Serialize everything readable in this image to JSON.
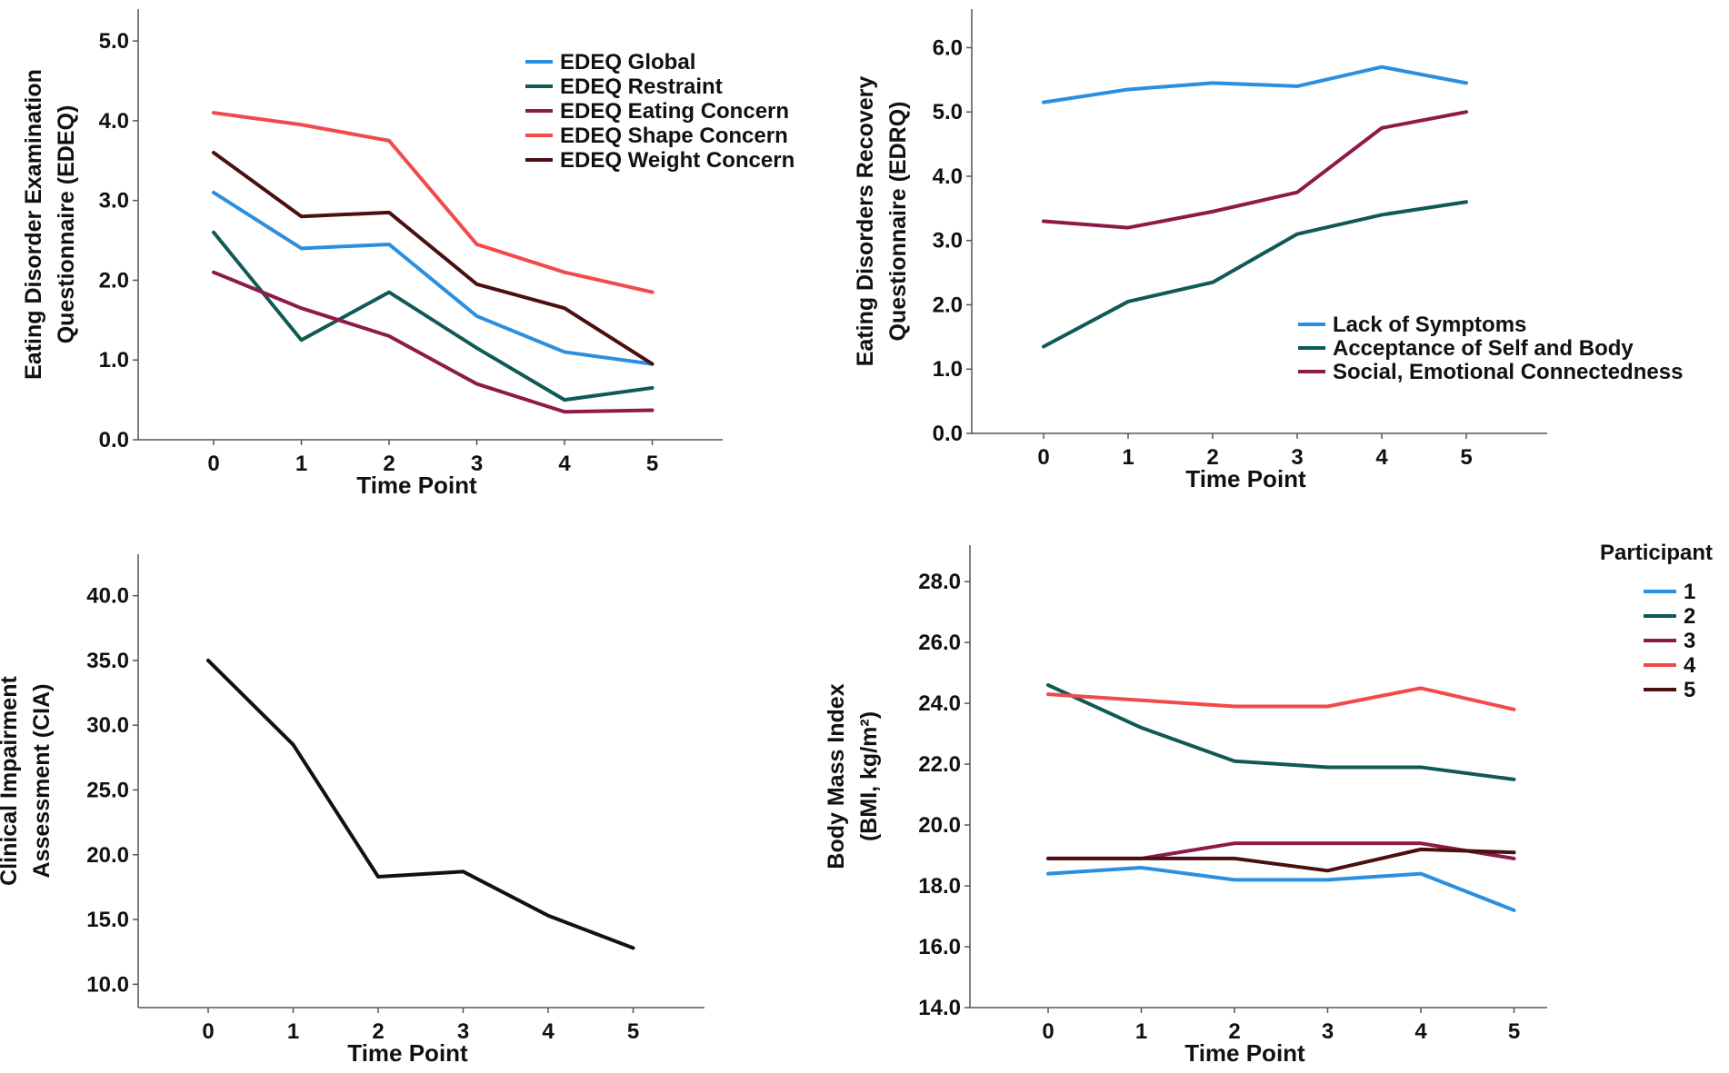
{
  "colors": {
    "blue": "#2b8fe0",
    "teal": "#0f5a55",
    "maroon": "#8c1a4a",
    "red": "#f24a4a",
    "darkbrown": "#4a0f0f",
    "black": "#111111",
    "axis": "#555555"
  },
  "chart_data": [
    {
      "id": "edeq",
      "type": "line",
      "ylabel_lines": [
        "Eating Disorder Examination",
        "Questionnaire (EDEQ)"
      ],
      "xlabel": "Time Point",
      "categories": [
        "0",
        "1",
        "2",
        "3",
        "4",
        "5"
      ],
      "ylim": [
        0,
        5.4
      ],
      "yticks": [
        0,
        1,
        2,
        3,
        4,
        5
      ],
      "ytick_labels": [
        "0.0",
        "1.0",
        "2.0",
        "3.0",
        "4.0",
        "5.0"
      ],
      "legend_position": "top-right",
      "legend_title": "",
      "series": [
        {
          "name": "EDEQ Global",
          "color": "#2b8fe0",
          "values": [
            3.1,
            2.4,
            2.45,
            1.55,
            1.1,
            0.95
          ]
        },
        {
          "name": "EDEQ Restraint",
          "color": "#0f5a55",
          "values": [
            2.6,
            1.25,
            1.85,
            1.15,
            0.5,
            0.65
          ]
        },
        {
          "name": "EDEQ Eating Concern",
          "color": "#8c1a4a",
          "values": [
            2.1,
            1.65,
            1.3,
            0.7,
            0.35,
            0.37
          ]
        },
        {
          "name": "EDEQ Shape Concern",
          "color": "#f24a4a",
          "values": [
            4.1,
            3.95,
            3.75,
            2.45,
            2.1,
            1.85
          ]
        },
        {
          "name": "EDEQ Weight Concern",
          "color": "#4a0f0f",
          "values": [
            3.6,
            2.8,
            2.85,
            1.95,
            1.65,
            0.95
          ]
        }
      ]
    },
    {
      "id": "edrq",
      "type": "line",
      "ylabel_lines": [
        "Eating Disorders Recovery",
        "Questionnaire (EDRQ)"
      ],
      "xlabel": "Time Point",
      "categories": [
        "0",
        "1",
        "2",
        "3",
        "4",
        "5"
      ],
      "ylim": [
        0,
        6.6
      ],
      "yticks": [
        0,
        1,
        2,
        3,
        4,
        5,
        6
      ],
      "ytick_labels": [
        "0.0",
        "1.0",
        "2.0",
        "3.0",
        "4.0",
        "5.0",
        "6.0"
      ],
      "legend_position": "lower-right",
      "legend_title": "",
      "series": [
        {
          "name": "Lack of Symptoms",
          "color": "#2b8fe0",
          "values": [
            5.15,
            5.35,
            5.45,
            5.4,
            5.7,
            5.45
          ]
        },
        {
          "name": "Acceptance of Self and Body",
          "color": "#0f5a55",
          "values": [
            1.35,
            2.05,
            2.35,
            3.1,
            3.4,
            3.6
          ]
        },
        {
          "name": "Social, Emotional Connectedness",
          "color": "#8c1a4a",
          "values": [
            3.3,
            3.2,
            3.45,
            3.75,
            4.75,
            5.0
          ]
        }
      ]
    },
    {
      "id": "cia",
      "type": "line",
      "ylabel_lines": [
        "Clinical Impairment",
        "Assessment (CIA)"
      ],
      "xlabel": "Time Point",
      "categories": [
        "0",
        "1",
        "2",
        "3",
        "4",
        "5"
      ],
      "ylim": [
        8.2,
        43.2
      ],
      "yticks": [
        10,
        15,
        20,
        25,
        30,
        35,
        40
      ],
      "ytick_labels": [
        "10.0",
        "15.0",
        "20.0",
        "25.0",
        "30.0",
        "35.0",
        "40.0"
      ],
      "legend_position": "none",
      "legend_title": "",
      "series": [
        {
          "name": "CIA",
          "color": "#111111",
          "values": [
            35.0,
            28.5,
            18.3,
            18.7,
            15.3,
            12.8
          ]
        }
      ]
    },
    {
      "id": "bmi",
      "type": "line",
      "ylabel_lines": [
        "Body Mass Index",
        "(BMI, kg/m²)"
      ],
      "xlabel": "Time Point",
      "categories": [
        "0",
        "1",
        "2",
        "3",
        "4",
        "5"
      ],
      "ylim": [
        14,
        29.2
      ],
      "yticks": [
        14,
        16,
        18,
        20,
        22,
        24,
        26,
        28
      ],
      "ytick_labels": [
        "14.0",
        "16.0",
        "18.0",
        "20.0",
        "22.0",
        "24.0",
        "26.0",
        "28.0"
      ],
      "legend_position": "top-right (outside)",
      "legend_title": "Participant",
      "series": [
        {
          "name": "1",
          "color": "#2b8fe0",
          "values": [
            18.4,
            18.6,
            18.2,
            18.2,
            18.4,
            17.2
          ]
        },
        {
          "name": "2",
          "color": "#0f5a55",
          "values": [
            24.6,
            23.2,
            22.1,
            21.9,
            21.9,
            21.5
          ]
        },
        {
          "name": "3",
          "color": "#8c1a4a",
          "values": [
            18.9,
            18.9,
            19.4,
            19.4,
            19.4,
            18.9
          ]
        },
        {
          "name": "4",
          "color": "#f24a4a",
          "values": [
            24.3,
            24.1,
            23.9,
            23.9,
            24.5,
            23.8
          ]
        },
        {
          "name": "5",
          "color": "#4a0f0f",
          "values": [
            18.9,
            18.9,
            18.9,
            18.5,
            19.2,
            19.1
          ]
        }
      ]
    }
  ]
}
